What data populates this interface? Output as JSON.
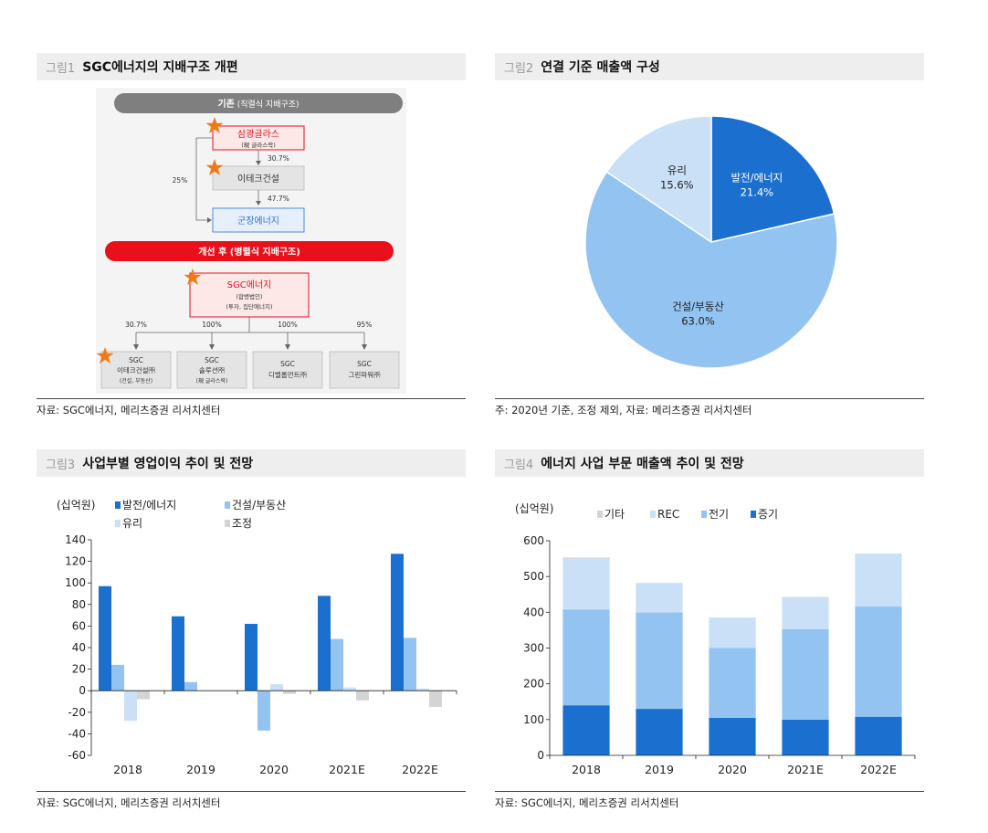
{
  "figures": [
    {
      "num": "그림1",
      "title": "SGC에너지의 지배구조 개편",
      "source": "자료: SGC에너지, 메리츠증권 리서치센터"
    },
    {
      "num": "그림2",
      "title": "연결 기준 매출액 구성",
      "source": "주: 2020년 기준, 조정 제외, 자료: 메리츠증권 리서치센터"
    },
    {
      "num": "그림3",
      "title": "사업부별 영업이익 추이 및 전망",
      "source": "자료: SGC에너지, 메리츠증권 리서치센터"
    },
    {
      "num": "그림4",
      "title": "에너지 사업 부문 매출액 추이 및 전망",
      "source": "자료: SGC에너지, 메리츠증권 리서치센터"
    }
  ],
  "diagram": {
    "before_banner_bold": "기존",
    "before_banner_rest": " (직렬식 지배구조)",
    "box_samkwang": "삼광글라스",
    "box_samkwang_sub": "(現 글라스락)",
    "pct_30_7_a": "30.7%",
    "box_etech": "이테크건설",
    "pct_47_7": "47.7%",
    "box_gunjang": "군장에너지",
    "pct_25": "25%",
    "after_banner": "개선 후 (병렬식 지배구조)",
    "box_sgc": "SGC에너지",
    "box_sgc_sub1": "(합병법인)",
    "box_sgc_sub2": "(투자, 집단에너지)",
    "pcts": [
      "30.7%",
      "100%",
      "100%",
      "95%"
    ],
    "subs": [
      {
        "l1": "SGC",
        "l2": "이테크건설㈜",
        "l3": "(건설, 부동산)"
      },
      {
        "l1": "SGC",
        "l2": "솔루션㈜",
        "l3": "(現 글라스락)"
      },
      {
        "l1": "SGC",
        "l2": "디벨롭먼트㈜",
        "l3": ""
      },
      {
        "l1": "SGC",
        "l2": "그린파워㈜",
        "l3": ""
      }
    ],
    "colors": {
      "red": "#e8101a",
      "gray": "#7f7f7f",
      "blue": "#2f6fd6",
      "star": "#f07a1a"
    }
  },
  "chart_data": [
    {
      "type": "pie",
      "title": "연결 기준 매출액 구성",
      "slices": [
        {
          "label": "발전/에너지",
          "value": 21.4,
          "text": "21.4%",
          "color": "#1a6fcf"
        },
        {
          "label": "건설/부동산",
          "value": 63.0,
          "text": "63.0%",
          "color": "#93c3f0"
        },
        {
          "label": "유리",
          "value": 15.6,
          "text": "15.6%",
          "color": "#c9e0f6"
        }
      ]
    },
    {
      "type": "bar",
      "title": "사업부별 영업이익 추이 및 전망",
      "unit": "(십억원)",
      "categories": [
        "2018",
        "2019",
        "2020",
        "2021E",
        "2022E"
      ],
      "series": [
        {
          "name": "발전/에너지",
          "color": "#1a6fcf",
          "values": [
            97,
            69,
            62,
            88,
            127
          ]
        },
        {
          "name": "건설/부동산",
          "color": "#93c3f0",
          "values": [
            24,
            8,
            -37,
            48,
            49
          ]
        },
        {
          "name": "유리",
          "color": "#c9e0f6",
          "values": [
            -28,
            0,
            6,
            3,
            2
          ]
        },
        {
          "name": "조정",
          "color": "#d4d4d4",
          "values": [
            -8,
            0,
            -3,
            -9,
            -15
          ]
        }
      ],
      "ylim": [
        -60,
        140
      ],
      "yticks": [
        140,
        120,
        100,
        80,
        60,
        40,
        20,
        0,
        -20,
        -40,
        -60
      ],
      "legend": "top"
    },
    {
      "type": "bar",
      "stacked": true,
      "title": "에너지 사업 부문 매출액 추이 및 전망",
      "unit": "(십억원)",
      "categories": [
        "2018",
        "2019",
        "2020",
        "2021E",
        "2022E"
      ],
      "series": [
        {
          "name": "증기",
          "color": "#1a6fcf",
          "values": [
            140,
            130,
            105,
            100,
            108
          ]
        },
        {
          "name": "전기",
          "color": "#93c3f0",
          "values": [
            268,
            270,
            195,
            253,
            308
          ]
        },
        {
          "name": "REC",
          "color": "#c9e0f6",
          "values": [
            142,
            82,
            85,
            88,
            148
          ]
        },
        {
          "name": "기타",
          "color": "#d4d4d4",
          "values": [
            3,
            0,
            0,
            2,
            0
          ]
        }
      ],
      "legend_order": [
        "기타",
        "REC",
        "전기",
        "증기"
      ],
      "ylim": [
        0,
        600
      ],
      "yticks": [
        600,
        500,
        400,
        300,
        200,
        100,
        0
      ],
      "legend": "top"
    }
  ]
}
